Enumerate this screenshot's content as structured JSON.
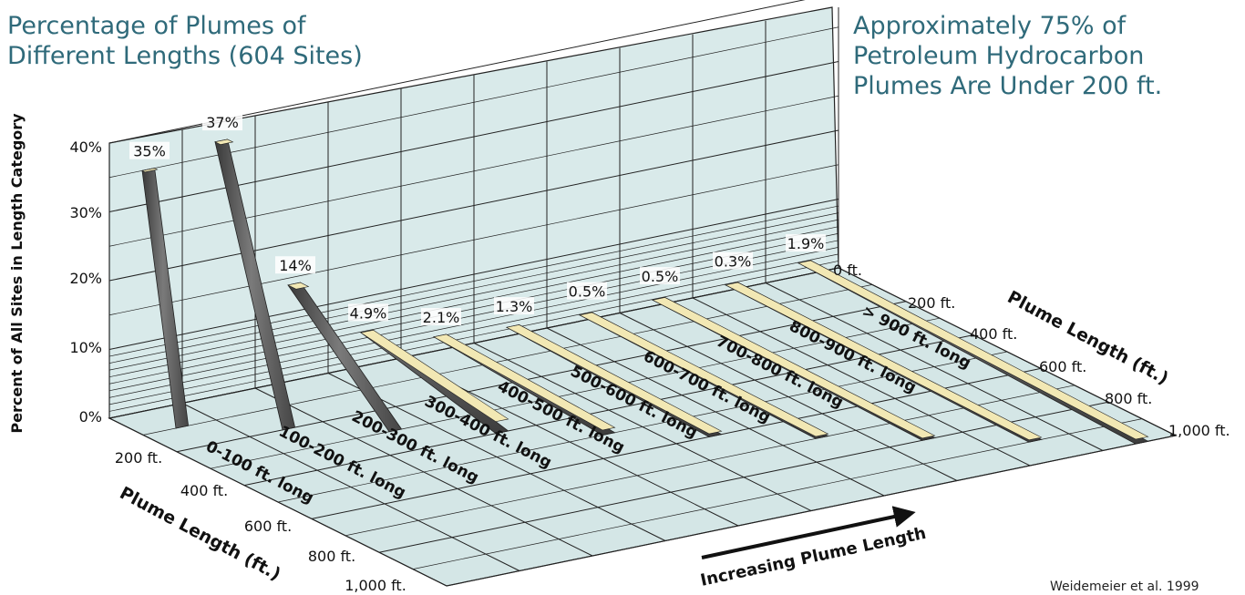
{
  "title_left": "Percentage of Plumes of Different Lengths (604 Sites)",
  "title_right": "Approximately 75% of Petroleum Hydrocarbon Plumes Are Under 200 ft.",
  "credit": "Weidemeier et al. 1999",
  "colors": {
    "title": "#2f6a7a",
    "grid_fill": "#d4e6e6",
    "bar_dark": "#555555",
    "bar_top": "#f2e8b4"
  },
  "chart_data": {
    "type": "bar",
    "categories": [
      "0-100 ft. long",
      "100-200 ft. long",
      "200-300 ft. long",
      "300-400 ft. long",
      "400-500 ft. long",
      "500-600 ft. long",
      "600-700 ft. long",
      "700-800 ft. long",
      "800-900 ft. long",
      "> 900 ft. long"
    ],
    "values": [
      35,
      37,
      14,
      4.9,
      2.1,
      1.3,
      0.5,
      0.5,
      0.3,
      1.9
    ],
    "value_labels": [
      "35%",
      "37%",
      "14%",
      "4.9%",
      "2.1%",
      "1.3%",
      "0.5%",
      "0.5%",
      "0.3%",
      "1.9%"
    ],
    "ylabel": "Percent of All Sites in Length Category",
    "y_ticks": [
      "0%",
      "10%",
      "20%",
      "30%",
      "40%"
    ],
    "ylim": [
      0,
      40
    ],
    "depth_label_left": "Plume Length (ft.)",
    "depth_ticks_left": [
      "200 ft.",
      "400 ft.",
      "600 ft.",
      "800 ft.",
      "1,000 ft."
    ],
    "depth_label_right": "Plume Length (ft.)",
    "depth_ticks_right": [
      "0 ft.",
      "200 ft.",
      "400 ft.",
      "600 ft.",
      "800 ft.",
      "1,000 ft."
    ],
    "x_arrow_label": "Increasing Plume Length",
    "grid": true
  }
}
